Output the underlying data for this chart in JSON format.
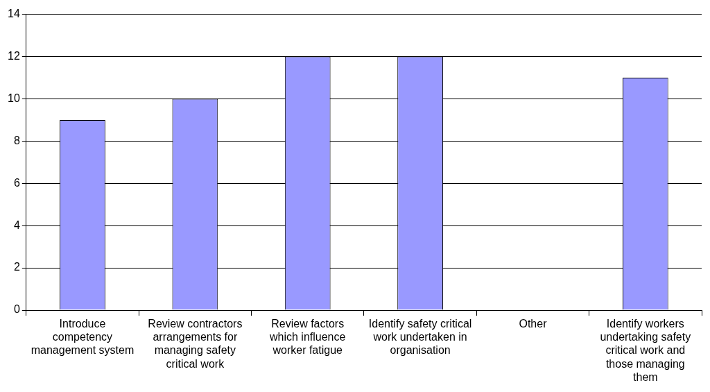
{
  "chart_data": {
    "type": "bar",
    "categories": [
      "Introduce competency management system",
      "Review contractors arrangements for managing safety critical work",
      "Review factors which influence worker fatigue",
      "Identify safety critical work undertaken in organisation",
      "Other",
      "Identify workers undertaking safety critical work and those managing them"
    ],
    "values": [
      9,
      10,
      12,
      12,
      0,
      11
    ],
    "color": "#9999ff",
    "ylim": [
      0,
      14
    ],
    "yticks": [
      0,
      2,
      4,
      6,
      8,
      10,
      12,
      14
    ],
    "grid": "y",
    "legend": false
  }
}
